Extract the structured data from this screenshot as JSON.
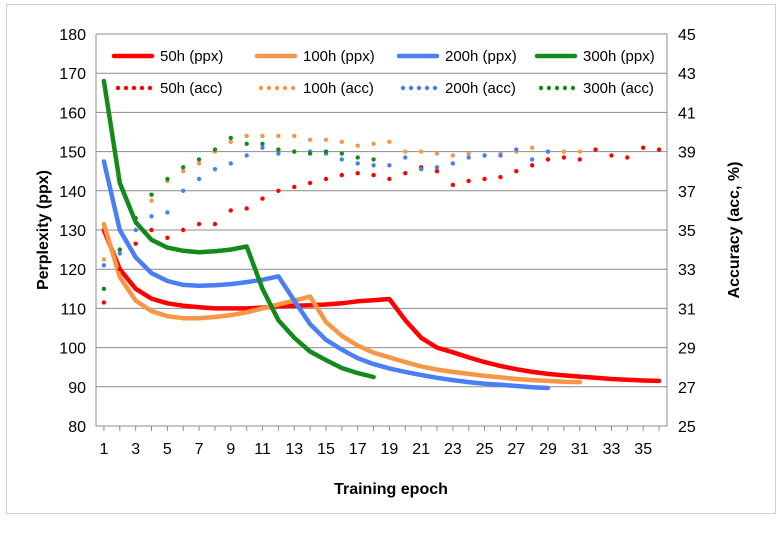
{
  "chart_data": {
    "type": "line",
    "title": "",
    "xlabel": "Training epoch",
    "ylabel": "Perplexity (ppx)",
    "y2label": "Accuracy (acc, %)",
    "x_ticks": [
      1,
      3,
      5,
      7,
      9,
      11,
      13,
      15,
      17,
      19,
      21,
      23,
      25,
      27,
      29,
      31,
      33,
      35
    ],
    "xlim": [
      0.5,
      36.5
    ],
    "ylim": [
      80,
      180
    ],
    "y_ticks": [
      80,
      90,
      100,
      110,
      120,
      130,
      140,
      150,
      160,
      170,
      180
    ],
    "y2lim": [
      25,
      45
    ],
    "y2_ticks": [
      25,
      27,
      29,
      31,
      33,
      35,
      37,
      39,
      41,
      43,
      45
    ],
    "grid": "horizontal",
    "legend_position": "top",
    "series": [
      {
        "name": "50h (ppx)",
        "axis": "left",
        "style": "solid",
        "color": "#ff0000",
        "x": [
          1,
          2,
          3,
          4,
          5,
          6,
          7,
          8,
          9,
          10,
          11,
          12,
          13,
          14,
          15,
          16,
          17,
          18,
          19,
          20,
          21,
          22,
          23,
          24,
          25,
          26,
          27,
          28,
          29,
          30,
          31,
          32,
          33,
          34,
          35,
          36
        ],
        "values": [
          130,
          120,
          115,
          112.5,
          111.3,
          110.7,
          110.3,
          110,
          110,
          110,
          110.2,
          110.5,
          110.7,
          110.8,
          111,
          111.3,
          111.8,
          112.1,
          112.4,
          107,
          102.5,
          100,
          98.8,
          97.5,
          96.3,
          95.3,
          94.5,
          93.8,
          93.3,
          92.9,
          92.6,
          92.3,
          92,
          91.8,
          91.6,
          91.5
        ]
      },
      {
        "name": "100h (ppx)",
        "axis": "left",
        "style": "solid",
        "color": "#f79646",
        "x": [
          1,
          2,
          3,
          4,
          5,
          6,
          7,
          8,
          9,
          10,
          11,
          12,
          13,
          14,
          15,
          16,
          17,
          18,
          19,
          20,
          21,
          22,
          23,
          24,
          25,
          26,
          27,
          28,
          29,
          30,
          31
        ],
        "values": [
          131.5,
          118,
          112,
          109.3,
          108,
          107.5,
          107.5,
          107.8,
          108.3,
          109,
          110,
          111,
          112,
          113,
          106.5,
          103,
          100.5,
          98.7,
          97.5,
          96.3,
          95.2,
          94.4,
          93.8,
          93.3,
          92.8,
          92.4,
          92,
          91.7,
          91.5,
          91.3,
          91.2
        ]
      },
      {
        "name": "200h (ppx)",
        "axis": "left",
        "style": "solid",
        "color": "#4a7ef5",
        "x": [
          1,
          2,
          3,
          4,
          5,
          6,
          7,
          8,
          9,
          10,
          11,
          12,
          13,
          14,
          15,
          16,
          17,
          18,
          19,
          20,
          21,
          22,
          23,
          24,
          25,
          26,
          27,
          28,
          29
        ],
        "values": [
          147.5,
          130,
          123,
          119,
          117,
          116,
          115.8,
          115.9,
          116.2,
          116.7,
          117.3,
          118.2,
          112,
          106,
          102,
          99.5,
          97.3,
          95.8,
          94.7,
          93.8,
          93,
          92.3,
          91.7,
          91.2,
          90.8,
          90.5,
          90.2,
          89.9,
          89.7
        ]
      },
      {
        "name": "300h (ppx)",
        "axis": "left",
        "style": "solid",
        "color": "#138a1a",
        "x": [
          1,
          2,
          3,
          4,
          5,
          6,
          7,
          8,
          9,
          10,
          11,
          12,
          13,
          14,
          15,
          16,
          17,
          18
        ],
        "values": [
          168,
          142,
          132,
          127.5,
          125.5,
          124.7,
          124.3,
          124.6,
          125,
          125.8,
          115,
          107,
          102.5,
          99,
          96.8,
          94.8,
          93.5,
          92.5
        ]
      },
      {
        "name": "50h (acc)",
        "axis": "right",
        "style": "dotted",
        "color": "#ff0000",
        "x": [
          1,
          2,
          3,
          4,
          5,
          6,
          7,
          8,
          9,
          10,
          11,
          12,
          13,
          14,
          15,
          16,
          17,
          18,
          19,
          20,
          21,
          22,
          23,
          24,
          25,
          26,
          27,
          28,
          29,
          30,
          31,
          32,
          33,
          34,
          35,
          36
        ],
        "values": [
          31.3,
          33,
          34.3,
          35,
          34.6,
          35,
          35.3,
          35.3,
          36,
          36.1,
          36.6,
          37,
          37.2,
          37.4,
          37.6,
          37.8,
          37.9,
          37.8,
          37.6,
          37.9,
          38.2,
          38,
          37.3,
          37.5,
          37.6,
          37.7,
          38,
          38.3,
          38.6,
          38.7,
          38.6,
          39.1,
          38.8,
          38.7,
          39.2,
          39.1
        ]
      },
      {
        "name": "100h (acc)",
        "axis": "right",
        "style": "dotted",
        "color": "#f79646",
        "x": [
          1,
          2,
          3,
          4,
          5,
          6,
          7,
          8,
          9,
          10,
          11,
          12,
          13,
          14,
          15,
          16,
          17,
          18,
          19,
          20,
          21,
          22,
          23,
          24,
          25,
          26,
          27,
          28,
          29,
          30,
          31
        ],
        "values": [
          33.5,
          34,
          35.6,
          36.5,
          37.5,
          38,
          38.4,
          39,
          39.5,
          39.8,
          39.8,
          39.8,
          39.8,
          39.6,
          39.6,
          39.5,
          39.3,
          39.4,
          39.5,
          39,
          39,
          38.9,
          38.8,
          38.9,
          38.8,
          38.9,
          39,
          39.2,
          39,
          39,
          39
        ]
      },
      {
        "name": "200h (acc)",
        "axis": "right",
        "style": "dotted",
        "color": "#4a7ef5",
        "x": [
          1,
          2,
          3,
          4,
          5,
          6,
          7,
          8,
          9,
          10,
          11,
          12,
          13,
          14,
          15,
          16,
          17,
          18,
          19,
          20,
          21,
          22,
          23,
          24,
          25,
          26,
          27,
          28,
          29
        ],
        "values": [
          33.2,
          33.8,
          35,
          35.7,
          35.9,
          37,
          37.6,
          38.1,
          38.4,
          38.8,
          39.2,
          38.9,
          39,
          39,
          38.9,
          38.6,
          38.4,
          38.3,
          38.3,
          38.7,
          38.1,
          38.2,
          38.4,
          38.7,
          38.8,
          38.8,
          39.1,
          38.6,
          39
        ]
      },
      {
        "name": "300h (acc)",
        "axis": "right",
        "style": "dotted",
        "color": "#138a1a",
        "x": [
          1,
          2,
          3,
          4,
          5,
          6,
          7,
          8,
          9,
          10,
          11,
          12,
          13,
          14,
          15,
          16,
          17,
          18
        ],
        "values": [
          32,
          34,
          35.6,
          36.8,
          37.6,
          38.2,
          38.6,
          39.1,
          39.7,
          39.4,
          39.4,
          39.1,
          39,
          38.9,
          39,
          38.9,
          38.7,
          38.6
        ]
      }
    ]
  }
}
